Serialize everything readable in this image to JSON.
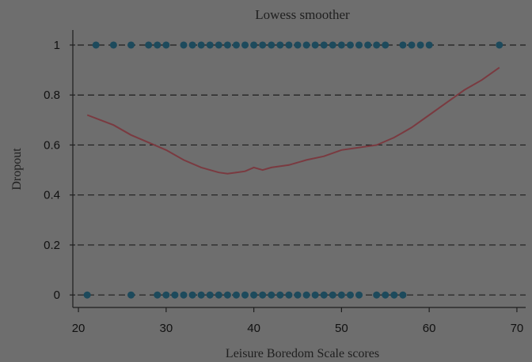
{
  "chart_data": {
    "type": "scatter",
    "title": "Lowess smoother",
    "xlabel": "Leisure Boredom Scale scores",
    "ylabel": "Dropout",
    "xlim": [
      19,
      71
    ],
    "ylim": [
      -0.05,
      1.06
    ],
    "x_ticks": [
      "20",
      "30",
      "40",
      "50",
      "60",
      "70"
    ],
    "y_ticks": [
      "0",
      "0.2",
      "0.4",
      "0.6",
      "0.8",
      "1"
    ],
    "x_tick_values": [
      20,
      30,
      40,
      50,
      60,
      70
    ],
    "y_tick_values": [
      0,
      0.2,
      0.4,
      0.6,
      0.8,
      1
    ],
    "grid": true,
    "points_y1": [
      22,
      24,
      26,
      28,
      29,
      30,
      32,
      33,
      34,
      35,
      36,
      37,
      38,
      39,
      40,
      41,
      42,
      43,
      44,
      45,
      46,
      47,
      48,
      49,
      50,
      51,
      52,
      53,
      54,
      55,
      57,
      58,
      59,
      60,
      68
    ],
    "points_y0": [
      21,
      26,
      29,
      30,
      31,
      32,
      33,
      34,
      35,
      36,
      37,
      38,
      39,
      40,
      41,
      42,
      43,
      44,
      45,
      46,
      47,
      48,
      49,
      50,
      51,
      52,
      54,
      55,
      56,
      57
    ],
    "series": [
      {
        "x": [
          21,
          24,
          26,
          28,
          30,
          32,
          34,
          36,
          37,
          38,
          39,
          40,
          41,
          42,
          44,
          46,
          48,
          50,
          52,
          54,
          56,
          58,
          60,
          62,
          64,
          66,
          68
        ],
        "y": [
          0.72,
          0.68,
          0.64,
          0.61,
          0.58,
          0.54,
          0.51,
          0.49,
          0.485,
          0.49,
          0.495,
          0.51,
          0.5,
          0.51,
          0.52,
          0.54,
          0.555,
          0.58,
          0.59,
          0.6,
          0.63,
          0.67,
          0.72,
          0.77,
          0.82,
          0.86,
          0.91
        ]
      }
    ],
    "colors": {
      "points": "#1d4a5c",
      "line": "#7a3a40",
      "background": "#6e6e6e"
    }
  }
}
